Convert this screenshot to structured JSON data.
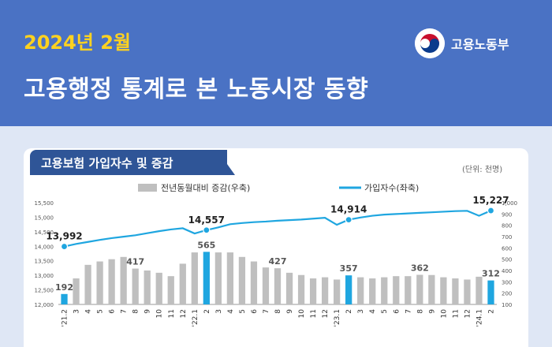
{
  "header": {
    "date": "2024년 2월",
    "title": "고용행정 통계로 본 노동시장 동향",
    "ministry": "고용노동부"
  },
  "section": {
    "title": "고용보험 가입자수 및 증감",
    "unit": "(단위: 천명)"
  },
  "colors": {
    "header_bg": "#4a72c4",
    "date_text": "#ffd21f",
    "tag_bg": "#2f5597",
    "bar_gray": "#bfbfbf",
    "bar_highlight": "#1fa6e0",
    "line": "#1fa6e0"
  },
  "chart_data": {
    "type": "bar+line",
    "categories": [
      "'21.2",
      "3",
      "4",
      "5",
      "6",
      "7",
      "8",
      "9",
      "10",
      "11",
      "12",
      "'22.1",
      "2",
      "3",
      "4",
      "5",
      "6",
      "7",
      "8",
      "9",
      "10",
      "11",
      "12",
      "'23.1",
      "2",
      "3",
      "4",
      "5",
      "6",
      "7",
      "8",
      "9",
      "10",
      "11",
      "12",
      "'24.1",
      "2"
    ],
    "bar_series": {
      "name": "전년동월대비 증감(우축)",
      "axis": "right",
      "values": [
        192,
        330,
        450,
        480,
        500,
        520,
        417,
        400,
        380,
        350,
        460,
        560,
        565,
        560,
        560,
        520,
        480,
        427,
        420,
        380,
        360,
        330,
        340,
        320,
        357,
        340,
        330,
        340,
        350,
        350,
        362,
        360,
        340,
        330,
        320,
        345,
        312
      ],
      "highlight_indices": [
        0,
        12,
        24,
        36
      ]
    },
    "line_series": {
      "name": "가입자수(좌축)",
      "axis": "left",
      "values": [
        13992,
        14080,
        14150,
        14220,
        14280,
        14330,
        14380,
        14450,
        14520,
        14580,
        14620,
        14440,
        14557,
        14650,
        14760,
        14800,
        14830,
        14850,
        14880,
        14900,
        14920,
        14950,
        14980,
        14740,
        14914,
        14990,
        15050,
        15090,
        15110,
        15130,
        15150,
        15170,
        15190,
        15210,
        15220,
        15050,
        15227
      ],
      "labeled_indices": [
        0,
        12,
        24,
        36
      ]
    },
    "bar_labels": [
      {
        "index": 0,
        "text": "192"
      },
      {
        "index": 6,
        "text": "417"
      },
      {
        "index": 12,
        "text": "565"
      },
      {
        "index": 18,
        "text": "427"
      },
      {
        "index": 24,
        "text": "357"
      },
      {
        "index": 30,
        "text": "362"
      },
      {
        "index": 36,
        "text": "312"
      }
    ],
    "line_labels": [
      {
        "index": 0,
        "text": "13,992"
      },
      {
        "index": 12,
        "text": "14,557"
      },
      {
        "index": 24,
        "text": "14,914"
      },
      {
        "index": 36,
        "text": "15,227"
      }
    ],
    "left_axis": {
      "min": 12000,
      "max": 15500,
      "ticks": [
        "12,000",
        "12,500",
        "13,000",
        "13,500",
        "14,000",
        "14,500",
        "15,000",
        "15,500"
      ]
    },
    "right_axis": {
      "min": 100,
      "max": 1000,
      "ticks": [
        "100",
        "200",
        "300",
        "400",
        "500",
        "600",
        "700",
        "800",
        "900",
        "1,000"
      ]
    },
    "legend": "top"
  }
}
